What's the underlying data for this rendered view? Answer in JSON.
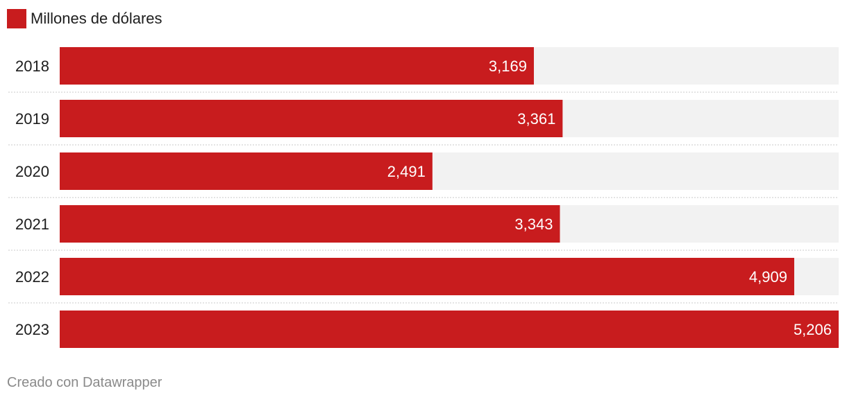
{
  "legend": {
    "label": "Millones de dólares",
    "color": "#c81c1e"
  },
  "footer": {
    "credit": "Creado con Datawrapper"
  },
  "colors": {
    "bar": "#c81c1e",
    "track": "#f2f2f2",
    "divider": "#c8c8c8",
    "value_text": "#ffffff",
    "label_text": "#1d1d1d"
  },
  "chart_data": {
    "type": "bar",
    "orientation": "horizontal",
    "categories": [
      "2018",
      "2019",
      "2020",
      "2021",
      "2022",
      "2023"
    ],
    "values": [
      3169,
      3361,
      2491,
      3343,
      4909,
      5206
    ],
    "value_labels": [
      "3,169",
      "3,361",
      "2,491",
      "3,343",
      "4,909",
      "5,206"
    ],
    "series": [
      {
        "name": "Millones de dólares",
        "values": [
          3169,
          3361,
          2491,
          3343,
          4909,
          5206
        ]
      }
    ],
    "xlim": [
      0,
      5206
    ],
    "grid": false,
    "legend_position": "top-left"
  }
}
